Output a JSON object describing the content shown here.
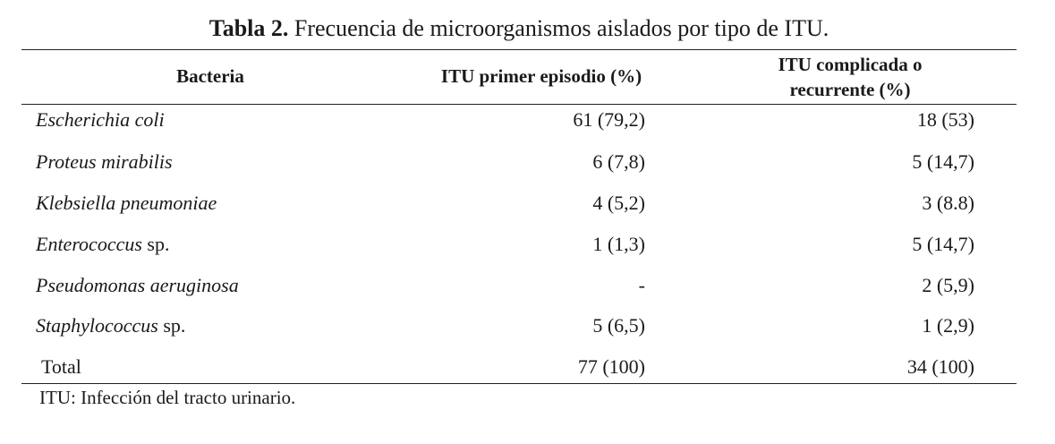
{
  "caption": {
    "label": "Tabla 2.",
    "text": " Frecuencia de microorganismos aislados por tipo de ITU."
  },
  "table": {
    "headers": {
      "bacteria": "Bacteria",
      "primer_episodio": "ITU primer episodio (%)",
      "complicada_line1": "ITU complicada o",
      "complicada_line2": "recurrente (%)"
    },
    "rows": [
      {
        "name_italic": "Escherichia coli",
        "name_suffix": "",
        "primer": "61 (79,2)",
        "complicada": "18 (53)"
      },
      {
        "name_italic": "Proteus mirabilis",
        "name_suffix": "",
        "primer": "6 (7,8)",
        "complicada": "5 (14,7)"
      },
      {
        "name_italic": "Klebsiella pneumoniae",
        "name_suffix": "",
        "primer": "4 (5,2)",
        "complicada": "3 (8.8)"
      },
      {
        "name_italic": "Enterococcus",
        "name_suffix": " sp.",
        "primer": "1 (1,3)",
        "complicada": "5 (14,7)"
      },
      {
        "name_italic": "Pseudomonas aeruginosa",
        "name_suffix": "",
        "primer": "-",
        "complicada": "2 (5,9)"
      },
      {
        "name_italic": "Staphylococcus",
        "name_suffix": " sp.",
        "primer": "5 (6,5)",
        "complicada": "1 (2,9)"
      }
    ],
    "total": {
      "label": "Total",
      "primer": "77 (100)",
      "complicada": "34 (100)"
    }
  },
  "footnote": "ITU: Infección del tracto urinario."
}
